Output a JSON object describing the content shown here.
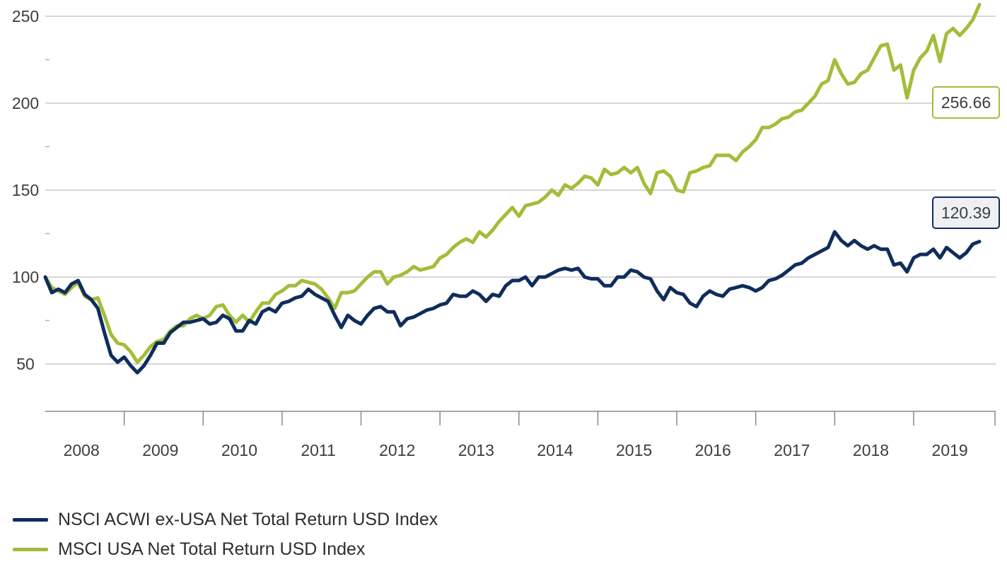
{
  "chart_data": {
    "type": "line",
    "title": "",
    "xlabel": "",
    "ylabel": "",
    "x_axis": {
      "tick_labels": [
        "2008",
        "2009",
        "2010",
        "2011",
        "2012",
        "2013",
        "2014",
        "2015",
        "2016",
        "2017",
        "2018",
        "2019"
      ],
      "range": [
        "2008-01",
        "2019-12"
      ]
    },
    "y_axis": {
      "tick_labels": [
        "50",
        "100",
        "150",
        "200",
        "250"
      ],
      "ticks": [
        50,
        100,
        150,
        200,
        250
      ],
      "range": [
        25,
        265
      ]
    },
    "grid": "horizontal",
    "legend_placement": "bottom-left",
    "series": [
      {
        "name": "NSCI ACWI ex-USA Net Total Return USD Index",
        "color": "#0f2d5c",
        "end_label": "120.39",
        "points": [
          [
            "2008-01",
            100
          ],
          [
            "2008-02",
            91
          ],
          [
            "2008-03",
            93
          ],
          [
            "2008-04",
            91
          ],
          [
            "2008-05",
            96
          ],
          [
            "2008-06",
            98
          ],
          [
            "2008-07",
            90
          ],
          [
            "2008-08",
            87
          ],
          [
            "2008-09",
            82
          ],
          [
            "2008-10",
            68
          ],
          [
            "2008-11",
            55
          ],
          [
            "2008-12",
            51
          ],
          [
            "2009-01",
            54
          ],
          [
            "2009-02",
            49
          ],
          [
            "2009-03",
            45
          ],
          [
            "2009-04",
            49
          ],
          [
            "2009-05",
            55
          ],
          [
            "2009-06",
            62
          ],
          [
            "2009-07",
            62
          ],
          [
            "2009-08",
            68
          ],
          [
            "2009-09",
            71
          ],
          [
            "2009-10",
            74
          ],
          [
            "2009-11",
            74
          ],
          [
            "2009-12",
            75
          ],
          [
            "2010-01",
            76
          ],
          [
            "2010-02",
            73
          ],
          [
            "2010-03",
            74
          ],
          [
            "2010-04",
            78
          ],
          [
            "2010-05",
            76
          ],
          [
            "2010-06",
            69
          ],
          [
            "2010-07",
            69
          ],
          [
            "2010-08",
            75
          ],
          [
            "2010-09",
            73
          ],
          [
            "2010-10",
            80
          ],
          [
            "2010-11",
            82
          ],
          [
            "2010-12",
            80
          ],
          [
            "2011-01",
            85
          ],
          [
            "2011-02",
            86
          ],
          [
            "2011-03",
            88
          ],
          [
            "2011-04",
            89
          ],
          [
            "2011-05",
            93
          ],
          [
            "2011-06",
            90
          ],
          [
            "2011-07",
            88
          ],
          [
            "2011-08",
            86
          ],
          [
            "2011-09",
            78
          ],
          [
            "2011-10",
            71
          ],
          [
            "2011-11",
            78
          ],
          [
            "2011-12",
            75
          ],
          [
            "2012-01",
            73
          ],
          [
            "2012-02",
            78
          ],
          [
            "2012-03",
            82
          ],
          [
            "2012-04",
            83
          ],
          [
            "2012-05",
            80
          ],
          [
            "2012-06",
            80
          ],
          [
            "2012-07",
            72
          ],
          [
            "2012-08",
            76
          ],
          [
            "2012-09",
            77
          ],
          [
            "2012-10",
            79
          ],
          [
            "2012-11",
            81
          ],
          [
            "2012-12",
            82
          ],
          [
            "2013-01",
            84
          ],
          [
            "2013-02",
            85
          ],
          [
            "2013-03",
            90
          ],
          [
            "2013-04",
            89
          ],
          [
            "2013-05",
            89
          ],
          [
            "2013-06",
            92
          ],
          [
            "2013-07",
            90
          ],
          [
            "2013-08",
            86
          ],
          [
            "2013-09",
            90
          ],
          [
            "2013-10",
            89
          ],
          [
            "2013-11",
            95
          ],
          [
            "2013-12",
            98
          ],
          [
            "2014-01",
            98
          ],
          [
            "2014-02",
            100
          ],
          [
            "2014-03",
            95
          ],
          [
            "2014-04",
            100
          ],
          [
            "2014-05",
            100
          ],
          [
            "2014-06",
            102
          ],
          [
            "2014-07",
            104
          ],
          [
            "2014-08",
            105
          ],
          [
            "2014-09",
            104
          ],
          [
            "2014-10",
            105
          ],
          [
            "2014-11",
            100
          ],
          [
            "2014-12",
            99
          ],
          [
            "2015-01",
            99
          ],
          [
            "2015-02",
            95
          ],
          [
            "2015-03",
            95
          ],
          [
            "2015-04",
            100
          ],
          [
            "2015-05",
            100
          ],
          [
            "2015-06",
            104
          ],
          [
            "2015-07",
            103
          ],
          [
            "2015-08",
            100
          ],
          [
            "2015-09",
            99
          ],
          [
            "2015-10",
            92
          ],
          [
            "2015-11",
            87
          ],
          [
            "2015-12",
            94
          ],
          [
            "2016-01",
            91
          ],
          [
            "2016-02",
            90
          ],
          [
            "2016-03",
            85
          ],
          [
            "2016-04",
            83
          ],
          [
            "2016-05",
            89
          ],
          [
            "2016-06",
            92
          ],
          [
            "2016-07",
            90
          ],
          [
            "2016-08",
            89
          ],
          [
            "2016-09",
            93
          ],
          [
            "2016-10",
            94
          ],
          [
            "2016-11",
            95
          ],
          [
            "2016-12",
            94
          ],
          [
            "2017-01",
            92
          ],
          [
            "2017-02",
            94
          ],
          [
            "2017-03",
            98
          ],
          [
            "2017-04",
            99
          ],
          [
            "2017-05",
            101
          ],
          [
            "2017-06",
            104
          ],
          [
            "2017-07",
            107
          ],
          [
            "2017-08",
            108
          ],
          [
            "2017-09",
            111
          ],
          [
            "2017-10",
            113
          ],
          [
            "2017-11",
            115
          ],
          [
            "2017-12",
            117
          ],
          [
            "2018-01",
            126
          ],
          [
            "2018-02",
            121
          ],
          [
            "2018-03",
            118
          ],
          [
            "2018-04",
            121
          ],
          [
            "2018-05",
            118
          ],
          [
            "2018-06",
            116
          ],
          [
            "2018-07",
            118
          ],
          [
            "2018-08",
            116
          ],
          [
            "2018-09",
            116
          ],
          [
            "2018-10",
            107
          ],
          [
            "2018-11",
            108
          ],
          [
            "2018-12",
            103
          ],
          [
            "2019-01",
            111
          ],
          [
            "2019-02",
            113
          ],
          [
            "2019-03",
            113
          ],
          [
            "2019-04",
            116
          ],
          [
            "2019-05",
            111
          ],
          [
            "2019-06",
            117
          ],
          [
            "2019-07",
            114
          ],
          [
            "2019-08",
            111
          ],
          [
            "2019-09",
            114
          ],
          [
            "2019-10",
            119
          ],
          [
            "2019-11",
            120.39
          ]
        ]
      },
      {
        "name": "MSCI USA Net Total Return USD Index",
        "color": "#a3bd3a",
        "end_label": "256.66",
        "points": [
          [
            "2008-01",
            100
          ],
          [
            "2008-02",
            94
          ],
          [
            "2008-03",
            92
          ],
          [
            "2008-04",
            90
          ],
          [
            "2008-05",
            94
          ],
          [
            "2008-06",
            97
          ],
          [
            "2008-07",
            89
          ],
          [
            "2008-08",
            87
          ],
          [
            "2008-09",
            88
          ],
          [
            "2008-10",
            78
          ],
          [
            "2008-11",
            67
          ],
          [
            "2008-12",
            62
          ],
          [
            "2009-01",
            61
          ],
          [
            "2009-02",
            57
          ],
          [
            "2009-03",
            51
          ],
          [
            "2009-04",
            55
          ],
          [
            "2009-05",
            60
          ],
          [
            "2009-06",
            63
          ],
          [
            "2009-07",
            64
          ],
          [
            "2009-08",
            69
          ],
          [
            "2009-09",
            72
          ],
          [
            "2009-10",
            72
          ],
          [
            "2009-11",
            76
          ],
          [
            "2009-12",
            78
          ],
          [
            "2010-01",
            76
          ],
          [
            "2010-02",
            78
          ],
          [
            "2010-03",
            83
          ],
          [
            "2010-04",
            84
          ],
          [
            "2010-05",
            78
          ],
          [
            "2010-06",
            74
          ],
          [
            "2010-07",
            78
          ],
          [
            "2010-08",
            74
          ],
          [
            "2010-09",
            80
          ],
          [
            "2010-10",
            85
          ],
          [
            "2010-11",
            85
          ],
          [
            "2010-12",
            90
          ],
          [
            "2011-01",
            92
          ],
          [
            "2011-02",
            95
          ],
          [
            "2011-03",
            95
          ],
          [
            "2011-04",
            98
          ],
          [
            "2011-05",
            97
          ],
          [
            "2011-06",
            96
          ],
          [
            "2011-07",
            93
          ],
          [
            "2011-08",
            88
          ],
          [
            "2011-09",
            82
          ],
          [
            "2011-10",
            91
          ],
          [
            "2011-11",
            91
          ],
          [
            "2011-12",
            92
          ],
          [
            "2012-01",
            96
          ],
          [
            "2012-02",
            100
          ],
          [
            "2012-03",
            103
          ],
          [
            "2012-04",
            103
          ],
          [
            "2012-05",
            96
          ],
          [
            "2012-06",
            100
          ],
          [
            "2012-07",
            101
          ],
          [
            "2012-08",
            103
          ],
          [
            "2012-09",
            106
          ],
          [
            "2012-10",
            104
          ],
          [
            "2012-11",
            105
          ],
          [
            "2012-12",
            106
          ],
          [
            "2013-01",
            111
          ],
          [
            "2013-02",
            113
          ],
          [
            "2013-03",
            117
          ],
          [
            "2013-04",
            120
          ],
          [
            "2013-05",
            122
          ],
          [
            "2013-06",
            120
          ],
          [
            "2013-07",
            126
          ],
          [
            "2013-08",
            123
          ],
          [
            "2013-09",
            127
          ],
          [
            "2013-10",
            132
          ],
          [
            "2013-11",
            136
          ],
          [
            "2013-12",
            140
          ],
          [
            "2014-01",
            135
          ],
          [
            "2014-02",
            141
          ],
          [
            "2014-03",
            142
          ],
          [
            "2014-04",
            143
          ],
          [
            "2014-05",
            146
          ],
          [
            "2014-06",
            150
          ],
          [
            "2014-07",
            147
          ],
          [
            "2014-08",
            153
          ],
          [
            "2014-09",
            151
          ],
          [
            "2014-10",
            154
          ],
          [
            "2014-11",
            158
          ],
          [
            "2014-12",
            157
          ],
          [
            "2015-01",
            153
          ],
          [
            "2015-02",
            162
          ],
          [
            "2015-03",
            159
          ],
          [
            "2015-04",
            160
          ],
          [
            "2015-05",
            163
          ],
          [
            "2015-06",
            160
          ],
          [
            "2015-07",
            163
          ],
          [
            "2015-08",
            154
          ],
          [
            "2015-09",
            148
          ],
          [
            "2015-10",
            160
          ],
          [
            "2015-11",
            161
          ],
          [
            "2015-12",
            158
          ],
          [
            "2016-01",
            150
          ],
          [
            "2016-02",
            149
          ],
          [
            "2016-03",
            160
          ],
          [
            "2016-04",
            161
          ],
          [
            "2016-05",
            163
          ],
          [
            "2016-06",
            164
          ],
          [
            "2016-07",
            170
          ],
          [
            "2016-08",
            170
          ],
          [
            "2016-09",
            170
          ],
          [
            "2016-10",
            167
          ],
          [
            "2016-11",
            172
          ],
          [
            "2016-12",
            175
          ],
          [
            "2017-01",
            179
          ],
          [
            "2017-02",
            186
          ],
          [
            "2017-03",
            186
          ],
          [
            "2017-04",
            188
          ],
          [
            "2017-05",
            191
          ],
          [
            "2017-06",
            192
          ],
          [
            "2017-07",
            195
          ],
          [
            "2017-08",
            196
          ],
          [
            "2017-09",
            200
          ],
          [
            "2017-10",
            204
          ],
          [
            "2017-11",
            211
          ],
          [
            "2017-12",
            213
          ],
          [
            "2018-01",
            225
          ],
          [
            "2018-02",
            217
          ],
          [
            "2018-03",
            211
          ],
          [
            "2018-04",
            212
          ],
          [
            "2018-05",
            217
          ],
          [
            "2018-06",
            219
          ],
          [
            "2018-07",
            226
          ],
          [
            "2018-08",
            233
          ],
          [
            "2018-09",
            234
          ],
          [
            "2018-10",
            219
          ],
          [
            "2018-11",
            222
          ],
          [
            "2018-12",
            203
          ],
          [
            "2019-01",
            219
          ],
          [
            "2019-02",
            226
          ],
          [
            "2019-03",
            230
          ],
          [
            "2019-04",
            239
          ],
          [
            "2019-05",
            224
          ],
          [
            "2019-06",
            240
          ],
          [
            "2019-07",
            243
          ],
          [
            "2019-08",
            239
          ],
          [
            "2019-09",
            243
          ],
          [
            "2019-10",
            248
          ],
          [
            "2019-11",
            256.66
          ]
        ]
      }
    ]
  }
}
